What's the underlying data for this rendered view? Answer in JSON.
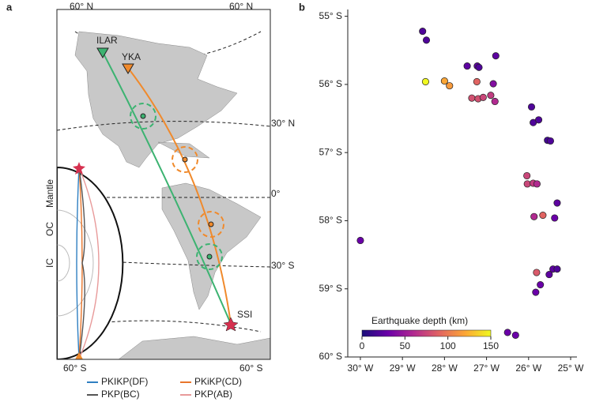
{
  "chart_data": [
    {
      "type": "map",
      "panel_label": "a",
      "labels": {
        "lat_top_left": "60° N",
        "lat_top_right": "60° N",
        "station_1": "ILAR",
        "station_2": "YKA",
        "lat_30n": "30° N",
        "lat_0": "0°",
        "lat_30s": "30° S",
        "source": "SSI",
        "lat_bottom_left": "60° S",
        "lat_bottom_right": "60° S",
        "mantle": "Mantle",
        "outer_core": "OC",
        "inner_core": "IC"
      },
      "series": [
        {
          "name": "PKIKP(DF)",
          "color": "#2f7fc1"
        },
        {
          "name": "PKiKP(CD)",
          "color": "#e8762c"
        },
        {
          "name": "PKP(BC)",
          "color": "#555555"
        },
        {
          "name": "PKP(AB)",
          "color": "#e89a9a"
        }
      ]
    },
    {
      "type": "scatter",
      "panel_label": "b",
      "x": [
        -28.52,
        -28.43,
        -26.78,
        -27.46,
        -27.22,
        -27.18,
        -28.45,
        -28.0,
        -27.88,
        -27.23,
        -26.84,
        -27.35,
        -27.2,
        -27.08,
        -26.9,
        -26.8,
        -25.93,
        -25.89,
        -25.76,
        -25.55,
        -25.48,
        -26.04,
        -26.03,
        -25.89,
        -25.8,
        -25.32,
        -25.87,
        -25.66,
        -25.38,
        -30.0,
        -25.81,
        -25.42,
        -25.32,
        -25.51,
        -25.72,
        -25.83,
        -26.5,
        -26.31
      ],
      "y": [
        -55.22,
        -55.35,
        -55.58,
        -55.73,
        -55.73,
        -55.75,
        -55.96,
        -55.95,
        -56.02,
        -55.96,
        -55.99,
        -56.2,
        -56.21,
        -56.19,
        -56.16,
        -56.25,
        -56.33,
        -56.56,
        -56.52,
        -56.82,
        -56.83,
        -57.34,
        -57.46,
        -57.45,
        -57.46,
        -57.74,
        -57.94,
        -57.92,
        -57.96,
        -58.29,
        -58.76,
        -58.71,
        -58.71,
        -58.79,
        -58.94,
        -59.05,
        -59.64,
        -59.68
      ],
      "depth": [
        20,
        20,
        25,
        25,
        25,
        20,
        150,
        120,
        115,
        90,
        40,
        80,
        80,
        75,
        70,
        60,
        20,
        20,
        20,
        15,
        20,
        75,
        75,
        70,
        60,
        25,
        60,
        90,
        30,
        30,
        85,
        25,
        20,
        25,
        30,
        30,
        30,
        30
      ],
      "xlim": [
        -30.3,
        -25
      ],
      "ylim": [
        -60,
        -54.9
      ],
      "xticks": [
        {
          "value": -30,
          "label": "30° W"
        },
        {
          "value": -29,
          "label": "29° W"
        },
        {
          "value": -28,
          "label": "28° W"
        },
        {
          "value": -27,
          "label": "27° W"
        },
        {
          "value": -26,
          "label": "26° W"
        },
        {
          "value": -25,
          "label": "25° W"
        }
      ],
      "yticks": [
        {
          "value": -55,
          "label": "55° S"
        },
        {
          "value": -56,
          "label": "56° S"
        },
        {
          "value": -57,
          "label": "57° S"
        },
        {
          "value": -58,
          "label": "58° S"
        },
        {
          "value": -59,
          "label": "59° S"
        },
        {
          "value": -60,
          "label": "60° S"
        }
      ],
      "colorbar": {
        "label": "Earthquake depth (km)",
        "lim": [
          0,
          150
        ],
        "ticks": [
          0,
          50,
          100,
          150
        ],
        "colors": [
          "#1a0f7a",
          "#6a00a8",
          "#b12a90",
          "#e16462",
          "#fca636",
          "#f0f921"
        ]
      }
    }
  ]
}
